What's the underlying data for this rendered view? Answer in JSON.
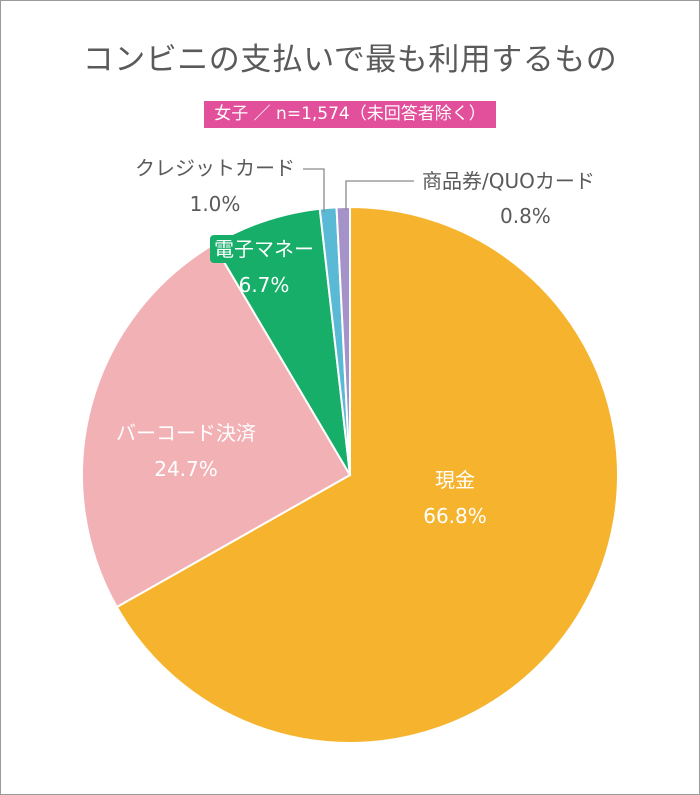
{
  "chart_data": {
    "type": "pie",
    "title": "コンビニの支払いで最も利用するもの",
    "subtitle": "女子 ／ n=1,574（未回答者除く）",
    "slices": [
      {
        "label": "現金",
        "value": 66.8,
        "value_label": "66.8%",
        "color": "#f6b42e"
      },
      {
        "label": "バーコード決済",
        "value": 24.7,
        "value_label": "24.7%",
        "color": "#f2b1b5"
      },
      {
        "label": "電子マネー",
        "value": 6.7,
        "value_label": "6.7%",
        "color": "#16ae68"
      },
      {
        "label": "クレジットカード",
        "value": 1.0,
        "value_label": "1.0%",
        "color": "#5ab9d4"
      },
      {
        "label": "商品券/QUOカード",
        "value": 0.8,
        "value_label": "0.8%",
        "color": "#a592c9"
      }
    ],
    "start_angle": "12 o'clock",
    "direction": "clockwise",
    "legend": "none"
  }
}
